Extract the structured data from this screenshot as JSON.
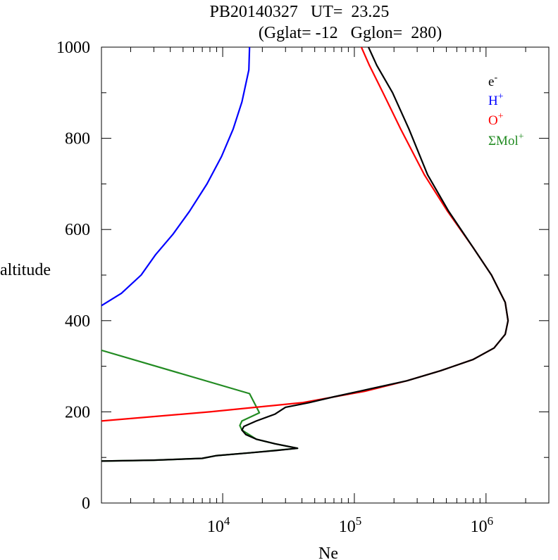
{
  "title": {
    "line1": "PB20140327   UT=  23.25",
    "line2": "(Gglat= -12   Gglon=  280)"
  },
  "colors": {
    "electron": "#000000",
    "hydrogen": "#0000ff",
    "oxygen": "#ff0000",
    "molecular": "#228b22"
  },
  "chart_data": {
    "type": "line",
    "title": "PB20140327   UT=  23.25 (Gglat= -12   Gglon=  280)",
    "xlabel": "Ne",
    "ylabel": "altitude",
    "xscale": "log",
    "xlim": [
      1200,
      3000000
    ],
    "ylim": [
      0,
      1000
    ],
    "x_ticks": [
      {
        "value": 10000,
        "base": "10",
        "exp": "4"
      },
      {
        "value": 100000,
        "base": "10",
        "exp": "5"
      },
      {
        "value": 1000000,
        "base": "10",
        "exp": "6"
      }
    ],
    "y_ticks": [
      0,
      200,
      400,
      600,
      800,
      1000
    ],
    "grid": false,
    "legend_position": "top-right",
    "series": [
      {
        "name": "e",
        "sup": "-",
        "color": "#000000",
        "points": [
          [
            1200,
            92
          ],
          [
            3000,
            94
          ],
          [
            7000,
            98
          ],
          [
            9000,
            104
          ],
          [
            16000,
            110
          ],
          [
            25000,
            115
          ],
          [
            37000,
            120
          ],
          [
            25000,
            130
          ],
          [
            18000,
            140
          ],
          [
            15000,
            150
          ],
          [
            14000,
            160
          ],
          [
            14500,
            168
          ],
          [
            18000,
            180
          ],
          [
            25000,
            195
          ],
          [
            30000,
            210
          ],
          [
            45000,
            220
          ],
          [
            70000,
            233
          ],
          [
            130000,
            250
          ],
          [
            250000,
            268
          ],
          [
            450000,
            290
          ],
          [
            800000,
            315
          ],
          [
            1150000,
            340
          ],
          [
            1400000,
            370
          ],
          [
            1470000,
            400
          ],
          [
            1400000,
            440
          ],
          [
            1100000,
            500
          ],
          [
            800000,
            560
          ],
          [
            520000,
            640
          ],
          [
            360000,
            720
          ],
          [
            260000,
            820
          ],
          [
            195000,
            900
          ],
          [
            148000,
            960
          ],
          [
            128000,
            1000
          ]
        ]
      },
      {
        "name": "H",
        "sup": "+",
        "color": "#0000ff",
        "points": [
          [
            1200,
            433
          ],
          [
            1700,
            460
          ],
          [
            2400,
            500
          ],
          [
            3100,
            545
          ],
          [
            4200,
            590
          ],
          [
            5600,
            640
          ],
          [
            7600,
            700
          ],
          [
            9800,
            760
          ],
          [
            12000,
            820
          ],
          [
            14000,
            880
          ],
          [
            15800,
            950
          ],
          [
            16000,
            1000
          ]
        ]
      },
      {
        "name": "O",
        "sup": "+",
        "color": "#ff0000",
        "points": [
          [
            1200,
            180
          ],
          [
            8000,
            200
          ],
          [
            40000,
            220
          ],
          [
            120000,
            245
          ],
          [
            250000,
            268
          ],
          [
            450000,
            290
          ],
          [
            800000,
            315
          ],
          [
            1150000,
            340
          ],
          [
            1400000,
            370
          ],
          [
            1470000,
            400
          ],
          [
            1400000,
            440
          ],
          [
            1100000,
            500
          ],
          [
            800000,
            560
          ],
          [
            510000,
            640
          ],
          [
            340000,
            720
          ],
          [
            225000,
            820
          ],
          [
            165000,
            900
          ],
          [
            130000,
            960
          ],
          [
            113000,
            1000
          ]
        ]
      },
      {
        "name": "ΣMol",
        "sup": "+",
        "color": "#228b22",
        "points": [
          [
            1200,
            335
          ],
          [
            16000,
            240
          ],
          [
            19000,
            198
          ],
          [
            14000,
            180
          ],
          [
            13500,
            170
          ],
          [
            14000,
            160
          ],
          [
            18000,
            140
          ],
          [
            25000,
            130
          ],
          [
            37000,
            120
          ],
          [
            16000,
            110
          ],
          [
            9000,
            104
          ],
          [
            7000,
            98
          ],
          [
            3000,
            94
          ],
          [
            1200,
            92
          ]
        ]
      }
    ]
  }
}
